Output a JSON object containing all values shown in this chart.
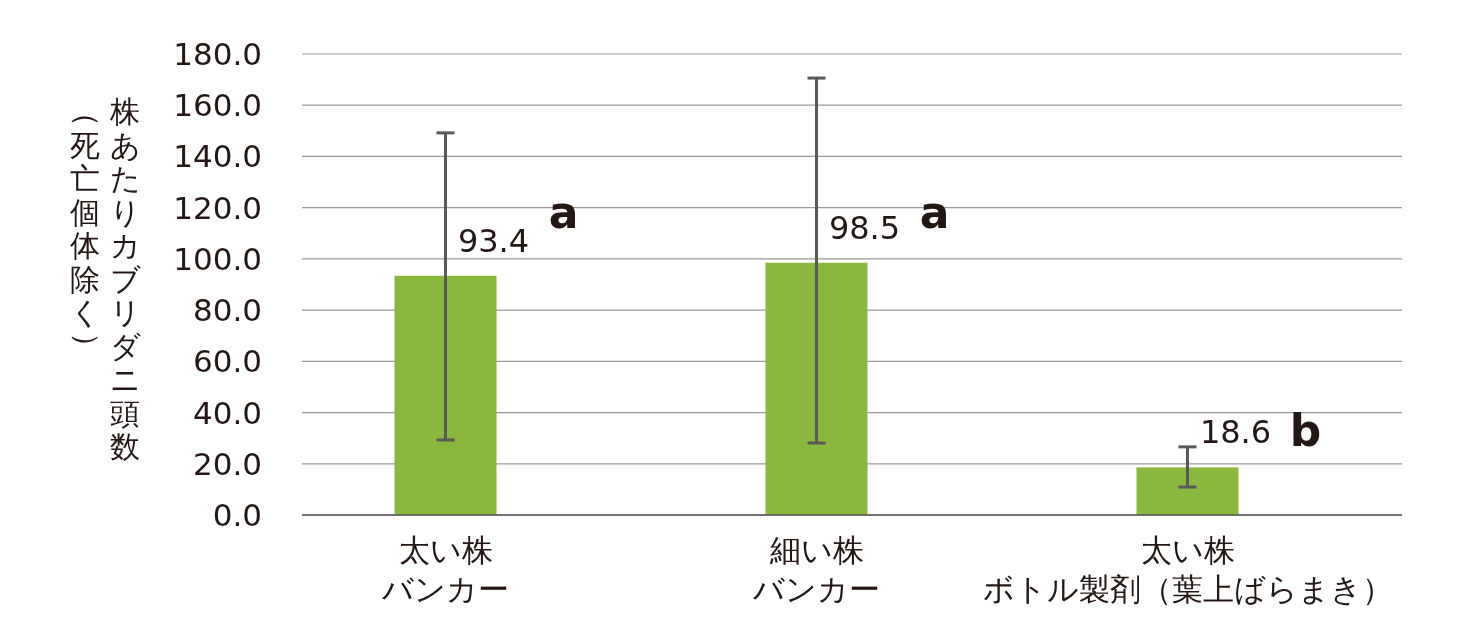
{
  "chart_data": {
    "type": "bar",
    "ylabel": "株あたりカブリダニ頭数（死亡個体除く）",
    "categories": [
      "太い株バンカー",
      "細い株バンカー",
      "太い株ボトル製剤（葉上ばらまき）"
    ],
    "values": [
      93.4,
      98.5,
      18.6
    ],
    "value_labels": [
      "93.4",
      "98.5",
      "18.6"
    ],
    "errors": [
      [
        29.3,
        149.2
      ],
      [
        28.1,
        170.6
      ],
      [
        10.9,
        26.6
      ]
    ],
    "color": "#8ab83e",
    "ylim": [
      0,
      180
    ],
    "yticks": [
      {
        "value": 0,
        "label": "0.0"
      },
      {
        "value": 20,
        "label": "20.0"
      },
      {
        "value": 40,
        "label": "40.0"
      },
      {
        "value": 60,
        "label": "60.0"
      },
      {
        "value": 80,
        "label": "80.0"
      },
      {
        "value": 100,
        "label": "100.0"
      },
      {
        "value": 120,
        "label": "120.0"
      },
      {
        "value": 140,
        "label": "140.0"
      },
      {
        "value": 160,
        "label": "160.0"
      },
      {
        "value": 180,
        "label": "180.0"
      }
    ],
    "grid": "y",
    "annotations": [
      {
        "text": "a",
        "x": "太い株バンカー",
        "y": 112
      },
      {
        "text": "a",
        "x": "細い株バンカー",
        "y": 112
      },
      {
        "text": "b",
        "x": "太い株ボトル製剤（葉上ばらまき）",
        "y": 27
      }
    ]
  }
}
